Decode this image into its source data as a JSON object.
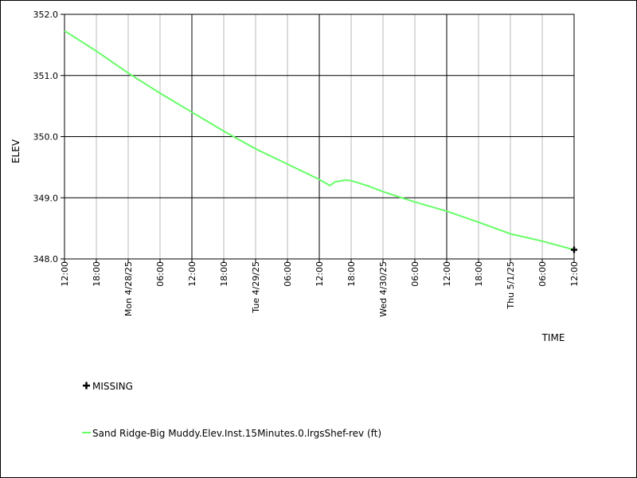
{
  "chart_data": {
    "type": "line",
    "ylabel": "ELEV",
    "xlabel": "TIME",
    "ylim": [
      348.0,
      352.0
    ],
    "y_ticks": [
      "352.0",
      "351.0",
      "350.0",
      "349.0",
      "348.0"
    ],
    "x_ticks": [
      "12:00",
      "18:00",
      "Mon 4/28/25",
      "06:00",
      "12:00",
      "18:00",
      "Tue 4/29/25",
      "06:00",
      "12:00",
      "18:00",
      "Wed 4/30/25",
      "06:00",
      "12:00",
      "18:00",
      "Thu 5/1/25",
      "06:00",
      "12:00"
    ],
    "x_range_hours": [
      0,
      96
    ],
    "major_tick_every": 4,
    "grid": true,
    "series": [
      {
        "name": "Sand Ridge-Big Muddy.Elev.Inst.15Minutes.0.lrgsShef-rev (ft)",
        "color": "#66ff66",
        "points": [
          {
            "h": 0,
            "y": 351.73
          },
          {
            "h": 6,
            "y": 351.4
          },
          {
            "h": 12,
            "y": 351.04
          },
          {
            "h": 18,
            "y": 350.71
          },
          {
            "h": 24,
            "y": 350.4
          },
          {
            "h": 30,
            "y": 350.09
          },
          {
            "h": 36,
            "y": 349.8
          },
          {
            "h": 42,
            "y": 349.55
          },
          {
            "h": 48,
            "y": 349.3
          },
          {
            "h": 50,
            "y": 349.2
          },
          {
            "h": 51,
            "y": 349.26
          },
          {
            "h": 53,
            "y": 349.29
          },
          {
            "h": 54,
            "y": 349.28
          },
          {
            "h": 57,
            "y": 349.2
          },
          {
            "h": 60,
            "y": 349.1
          },
          {
            "h": 66,
            "y": 348.93
          },
          {
            "h": 72,
            "y": 348.78
          },
          {
            "h": 78,
            "y": 348.6
          },
          {
            "h": 84,
            "y": 348.41
          },
          {
            "h": 90,
            "y": 348.29
          },
          {
            "h": 96,
            "y": 348.15
          }
        ]
      }
    ],
    "missing_points": [
      {
        "h": 96,
        "y": 348.15
      }
    ]
  },
  "legend": {
    "missing_label": "MISSING",
    "series_label": "Sand Ridge-Big Muddy.Elev.Inst.15Minutes.0.lrgsShef-rev (ft)",
    "series_color": "#66ff66",
    "missing_color": "#000000"
  }
}
